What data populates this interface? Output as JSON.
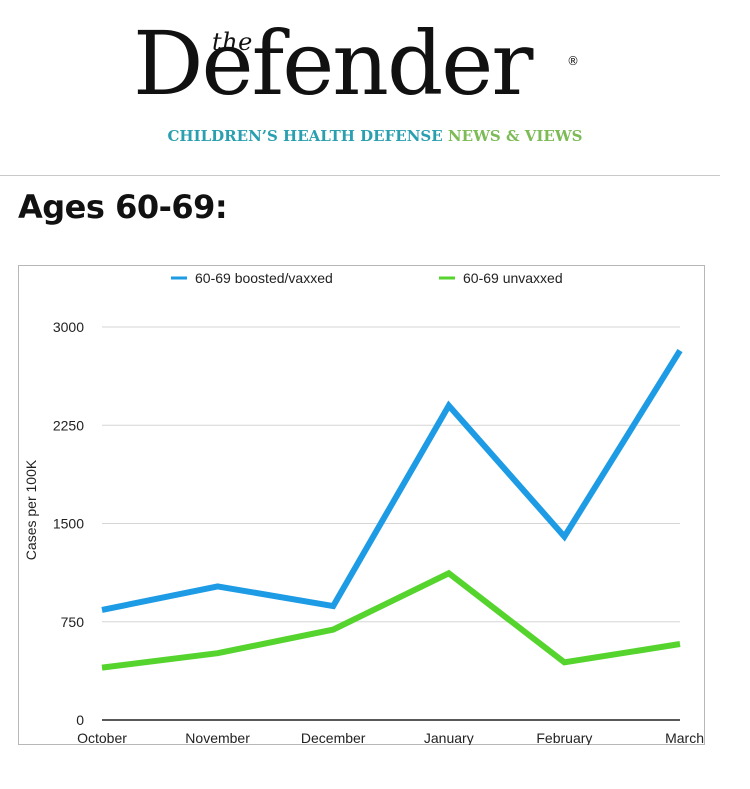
{
  "masthead": {
    "the": "the",
    "title": "Defender",
    "registered": "®",
    "tagline_a": "CHILDREN’S HEALTH DEFENSE",
    "tagline_b": "NEWS & VIEWS"
  },
  "heading": "Ages 60-69:",
  "chart_data": {
    "type": "line",
    "categories": [
      "October",
      "November",
      "December",
      "January",
      "February",
      "March"
    ],
    "series": [
      {
        "name": "60-69 boosted/vaxxed",
        "color": "#1e9be5",
        "values": [
          840,
          1020,
          870,
          2400,
          1400,
          2820
        ]
      },
      {
        "name": "60-69 unvaxxed",
        "color": "#55d42e",
        "values": [
          400,
          510,
          690,
          1120,
          440,
          580
        ]
      }
    ],
    "ylabel": "Cases per 100K",
    "xlabel": "",
    "ylim": [
      0,
      3000
    ],
    "yticks": [
      0,
      750,
      1500,
      2250,
      3000
    ],
    "grid": true,
    "legend": "top-center"
  }
}
